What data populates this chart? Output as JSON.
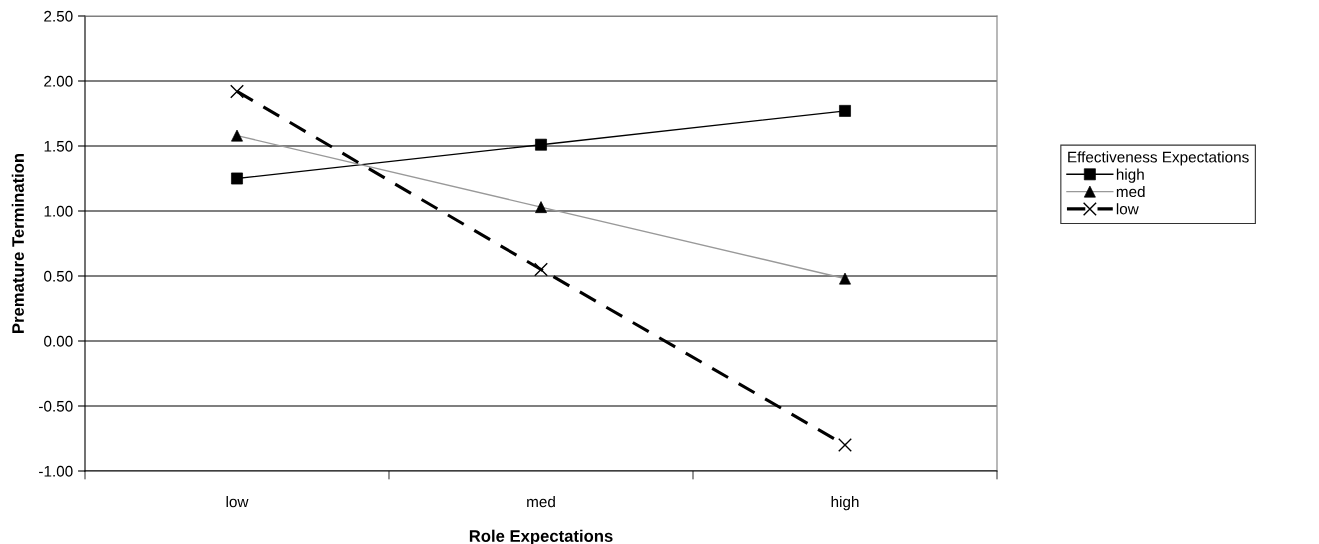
{
  "chart_data": {
    "type": "line",
    "xlabel": "Role Expectations",
    "ylabel": "Premature Termination",
    "legend_title": "Effectiveness Expectations",
    "categories": [
      "low",
      "med",
      "high"
    ],
    "series": [
      {
        "name": "high",
        "color": "#000000",
        "values": [
          1.25,
          1.51,
          1.77
        ],
        "marker": "square",
        "line_style": "solid"
      },
      {
        "name": "med",
        "color": "#999999",
        "values": [
          1.58,
          1.03,
          0.48
        ],
        "marker": "triangle",
        "line_style": "solid"
      },
      {
        "name": "low",
        "color": "#000000",
        "values": [
          1.92,
          0.55,
          -0.8
        ],
        "marker": "cross",
        "line_style": "dashed"
      }
    ],
    "ylim": [
      -1.0,
      2.5
    ],
    "yticks": [
      {
        "value": -1.0,
        "label": "-1.00"
      },
      {
        "value": -0.5,
        "label": "-0.50"
      },
      {
        "value": 0.0,
        "label": "0.00"
      },
      {
        "value": 0.5,
        "label": "0.50"
      },
      {
        "value": 1.0,
        "label": "1.00"
      },
      {
        "value": 1.5,
        "label": "1.50"
      },
      {
        "value": 2.0,
        "label": "2.00"
      },
      {
        "value": 2.5,
        "label": "2.50"
      }
    ],
    "grid": "y",
    "legend": "right"
  }
}
